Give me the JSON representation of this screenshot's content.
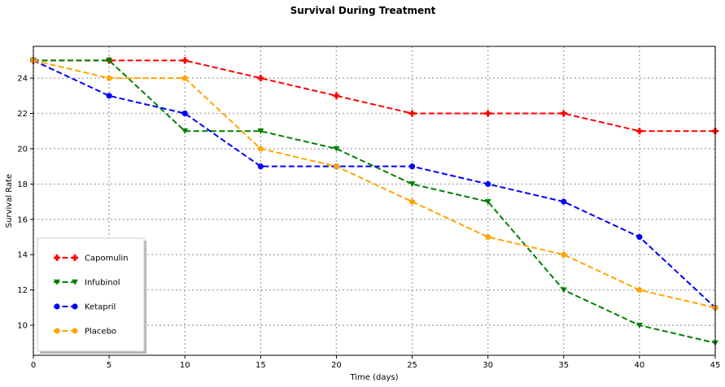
{
  "chart_data": {
    "type": "line",
    "title": "Survival During Treatment",
    "xlabel": "Time (days)",
    "ylabel": "Survival Rate",
    "xlim": [
      0,
      45
    ],
    "ylim": [
      8.3,
      25.8
    ],
    "x_ticks": [
      0,
      5,
      10,
      15,
      20,
      25,
      30,
      35,
      40,
      45
    ],
    "y_ticks": [
      10,
      12,
      14,
      16,
      18,
      20,
      22,
      24
    ],
    "x": [
      0,
      5,
      10,
      15,
      20,
      25,
      30,
      35,
      40,
      45
    ],
    "grid": true,
    "grid_style": "dotted",
    "legend_position": "lower-left",
    "series": [
      {
        "name": "Capomulin",
        "color": "#ff0000",
        "marker": "plus",
        "values": [
          25,
          25,
          25,
          24,
          23,
          22,
          22,
          22,
          21,
          21
        ]
      },
      {
        "name": "Infubinol",
        "color": "#008000",
        "marker": "triangle-down",
        "values": [
          25,
          25,
          21,
          21,
          20,
          18,
          17,
          12,
          10,
          9
        ]
      },
      {
        "name": "Ketapril",
        "color": "#0000ff",
        "marker": "circle",
        "values": [
          25,
          23,
          22,
          19,
          19,
          19,
          18,
          17,
          15,
          11
        ]
      },
      {
        "name": "Placebo",
        "color": "#ffa500",
        "marker": "pentagon",
        "values": [
          25,
          24,
          24,
          20,
          19,
          17,
          15,
          14,
          12,
          11
        ]
      }
    ]
  }
}
